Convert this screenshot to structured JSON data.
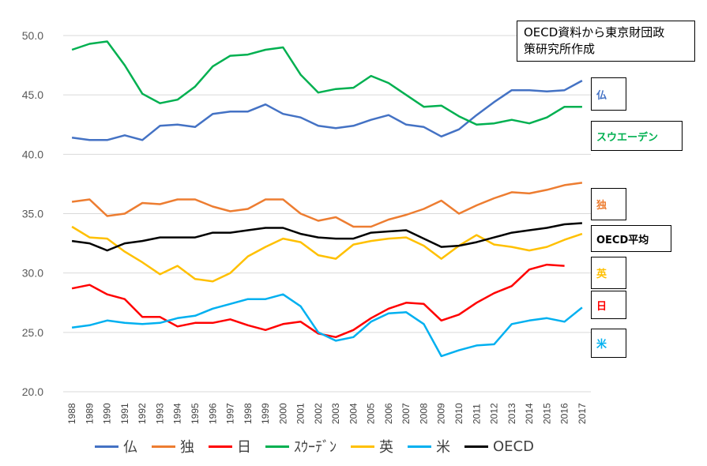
{
  "chart_data": {
    "type": "line",
    "title": "",
    "xlabel": "",
    "ylabel": "",
    "ylim": [
      20,
      50
    ],
    "yticks": [
      "20.0",
      "25.0",
      "30.0",
      "35.0",
      "40.0",
      "45.0",
      "50.0"
    ],
    "categories": [
      "1988",
      "1989",
      "1990",
      "1991",
      "1992",
      "1993",
      "1994",
      "1995",
      "1996",
      "1997",
      "1998",
      "1999",
      "2000",
      "2001",
      "2002",
      "2003",
      "2004",
      "2005",
      "2006",
      "2007",
      "2008",
      "2009",
      "2010",
      "2011",
      "2012",
      "2013",
      "2014",
      "2015",
      "2016",
      "2017"
    ],
    "legend_position": "bottom",
    "series": [
      {
        "name": "仏",
        "color": "#4472c4",
        "values": [
          41.4,
          41.2,
          41.2,
          41.6,
          41.2,
          42.4,
          42.5,
          42.3,
          43.4,
          43.6,
          43.6,
          44.2,
          43.4,
          43.1,
          42.4,
          42.2,
          42.4,
          42.9,
          43.3,
          42.5,
          42.3,
          41.5,
          42.1,
          43.3,
          44.4,
          45.4,
          45.4,
          45.3,
          45.4,
          46.2
        ]
      },
      {
        "name": "独",
        "color": "#ed7d31",
        "values": [
          36.0,
          36.2,
          34.8,
          35.0,
          35.9,
          35.8,
          36.2,
          36.2,
          35.6,
          35.2,
          35.4,
          36.2,
          36.2,
          35.0,
          34.4,
          34.7,
          33.9,
          33.9,
          34.5,
          34.9,
          35.4,
          36.1,
          35.0,
          35.7,
          36.3,
          36.8,
          36.7,
          37.0,
          37.4,
          37.6
        ]
      },
      {
        "name": "日",
        "color": "#ff0000",
        "values": [
          28.7,
          29.0,
          28.2,
          27.8,
          26.3,
          26.3,
          25.5,
          25.8,
          25.8,
          26.1,
          25.6,
          25.2,
          25.7,
          25.9,
          24.9,
          24.6,
          25.2,
          26.2,
          27.0,
          27.5,
          27.4,
          26.0,
          26.5,
          27.5,
          28.3,
          28.9,
          30.3,
          30.7,
          30.6,
          null
        ]
      },
      {
        "name": "ｽｳｰﾃﾞﾝ",
        "color": "#00b050",
        "values": [
          48.8,
          49.3,
          49.5,
          47.5,
          45.1,
          44.3,
          44.6,
          45.7,
          47.4,
          48.3,
          48.4,
          48.8,
          49.0,
          46.7,
          45.2,
          45.5,
          45.6,
          46.6,
          46.0,
          45.0,
          44.0,
          44.1,
          43.2,
          42.5,
          42.6,
          42.9,
          42.6,
          43.1,
          44.0,
          44.0
        ]
      },
      {
        "name": "英",
        "color": "#ffc000",
        "values": [
          33.9,
          33.0,
          32.9,
          31.8,
          30.9,
          29.9,
          30.6,
          29.5,
          29.3,
          30.0,
          31.4,
          32.2,
          32.9,
          32.6,
          31.5,
          31.2,
          32.4,
          32.7,
          32.9,
          33.0,
          32.3,
          31.2,
          32.3,
          33.2,
          32.4,
          32.2,
          31.9,
          32.2,
          32.8,
          33.3
        ]
      },
      {
        "name": "米",
        "color": "#00b0f0",
        "values": [
          25.4,
          25.6,
          26.0,
          25.8,
          25.7,
          25.8,
          26.2,
          26.4,
          27.0,
          27.4,
          27.8,
          27.8,
          28.2,
          27.2,
          25.0,
          24.3,
          24.6,
          25.9,
          26.6,
          26.7,
          25.7,
          23.0,
          23.5,
          23.9,
          24.0,
          25.7,
          26.0,
          26.2,
          25.9,
          27.1
        ]
      },
      {
        "name": "OECD",
        "color": "#000000",
        "values": [
          32.7,
          32.5,
          31.9,
          32.5,
          32.7,
          33.0,
          33.0,
          33.0,
          33.4,
          33.4,
          33.6,
          33.8,
          33.8,
          33.3,
          33.0,
          32.9,
          32.9,
          33.4,
          33.5,
          33.6,
          32.9,
          32.2,
          32.3,
          32.6,
          33.0,
          33.4,
          33.6,
          33.8,
          34.1,
          34.2
        ]
      }
    ],
    "annotations": {
      "source": [
        "OECD資料から東京財団政",
        "策研究所作成"
      ],
      "labels": [
        {
          "text": "仏",
          "color": "#4472c4"
        },
        {
          "text": "スウエーデン",
          "color": "#00b050"
        },
        {
          "text": "独",
          "color": "#ed7d31"
        },
        {
          "text": "OECD平均",
          "color": "#000000"
        },
        {
          "text": "英",
          "color": "#ffc000"
        },
        {
          "text": "日",
          "color": "#ff0000"
        },
        {
          "text": "米",
          "color": "#00b0f0"
        }
      ]
    }
  }
}
